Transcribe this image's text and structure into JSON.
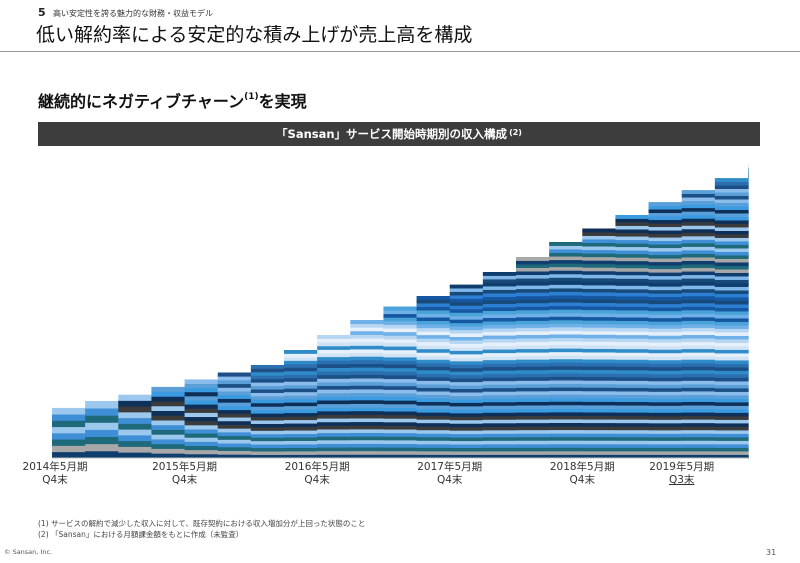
{
  "header": {
    "section_number": "5",
    "section_title": "高い安定性を誇る魅力的な財務・収益モデル",
    "page_title": "低い解約率による安定的な積み上げが売上高を構成"
  },
  "subheading": {
    "text": "継続的にネガティブチャーン",
    "sup": "(1)",
    "suffix": "を実現"
  },
  "chart_data": {
    "type": "area",
    "stacked": true,
    "title": "「Sansan」サービス開始時期別の収入構成",
    "title_note": "(2)",
    "xlabel": "",
    "ylabel": "",
    "x_range": [
      0,
      21
    ],
    "ticks": [
      {
        "x": 0,
        "line1": "2014年5月期",
        "line2": "Q4末"
      },
      {
        "x": 4,
        "line1": "2015年5月期",
        "line2": "Q4末"
      },
      {
        "x": 8,
        "line1": "2016年5月期",
        "line2": "Q4末"
      },
      {
        "x": 12,
        "line1": "2017年5月期",
        "line2": "Q4末"
      },
      {
        "x": 16,
        "line1": "2018年5月期",
        "line2": "Q4末"
      },
      {
        "x": 19,
        "line1": "2019年5月期",
        "line2": "Q3末",
        "underline_line2": true
      }
    ],
    "total_relative": [
      0.167,
      0.19,
      0.211,
      0.237,
      0.262,
      0.285,
      0.31,
      0.36,
      0.41,
      0.46,
      0.505,
      0.54,
      0.578,
      0.62,
      0.67,
      0.72,
      0.765,
      0.81,
      0.853,
      0.893,
      0.933,
      0.98
    ],
    "cohort_count": 84,
    "palette": [
      "#0f3d6e",
      "#2d7fd3",
      "#6fb0e8",
      "#cfe3f5",
      "#1b4f86",
      "#3a9be0",
      "#9cc8ee",
      "#a8a8a8",
      "#174a78",
      "#4aa3d8",
      "#e6f0fa",
      "#2b6fb0",
      "#5a9fd8",
      "#3b3b3b",
      "#1e6a7a",
      "#7fb7ea",
      "#1557a0",
      "#b6d6f2",
      "#2f8cc9",
      "#8bbcec",
      "#0e2f57",
      "#3f8fd6"
    ],
    "series_note": "Stacked revenue cohorts by service start period (values relative to latest total; unlabeled on axes)"
  },
  "notes": [
    "(1) サービスの解約で減少した収入に対して、既存契約における収入増加分が上回った状態のこと",
    "(2) 「Sansan」における月額課金額をもとに作成（未監査）"
  ],
  "footer": {
    "copyright": "© Sansan, Inc.",
    "page_number": "31"
  }
}
